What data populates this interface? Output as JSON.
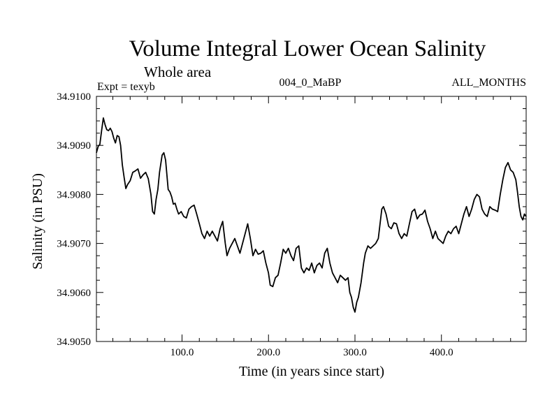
{
  "chart_data": {
    "type": "line",
    "title": "Volume Integral Lower Ocean Salinity",
    "subtitle": "Whole area",
    "annotations": {
      "experiment": "Expt = texyb",
      "run": "004_0_MaBP",
      "months": "ALL_MONTHS"
    },
    "xlabel": "Time (in years since start)",
    "ylabel": "Salinity (in PSU)",
    "xlim": [
      1,
      498
    ],
    "ylim": [
      34.905,
      34.91
    ],
    "x_ticks": [
      100,
      200,
      300,
      400
    ],
    "x_tick_labels": [
      "100.0",
      "200.0",
      "300.0",
      "400.0"
    ],
    "y_ticks": [
      34.905,
      34.906,
      34.907,
      34.908,
      34.909,
      34.91
    ],
    "y_tick_labels": [
      "34.9050",
      "34.9060",
      "34.9070",
      "34.9080",
      "34.9090",
      "34.9100"
    ],
    "grid": false,
    "series": [
      {
        "color": "#000000",
        "points": [
          [
            1,
            34.90885
          ],
          [
            3,
            34.90898
          ],
          [
            5,
            34.90902
          ],
          [
            7,
            34.9093
          ],
          [
            9,
            34.90956
          ],
          [
            11,
            34.90942
          ],
          [
            13,
            34.90932
          ],
          [
            15,
            34.9093
          ],
          [
            17,
            34.90935
          ],
          [
            19,
            34.90928
          ],
          [
            21,
            34.90915
          ],
          [
            23,
            34.90905
          ],
          [
            25,
            34.9092
          ],
          [
            27,
            34.90918
          ],
          [
            29,
            34.909
          ],
          [
            31,
            34.9086
          ],
          [
            33,
            34.90835
          ],
          [
            35,
            34.90812
          ],
          [
            37,
            34.9082
          ],
          [
            40,
            34.90828
          ],
          [
            43,
            34.90845
          ],
          [
            46,
            34.90848
          ],
          [
            49,
            34.90852
          ],
          [
            52,
            34.90833
          ],
          [
            55,
            34.9084
          ],
          [
            58,
            34.90845
          ],
          [
            61,
            34.90832
          ],
          [
            64,
            34.908
          ],
          [
            66,
            34.90765
          ],
          [
            68,
            34.9076
          ],
          [
            70,
            34.9079
          ],
          [
            72,
            34.9081
          ],
          [
            74,
            34.90845
          ],
          [
            77,
            34.9088
          ],
          [
            79,
            34.90885
          ],
          [
            81,
            34.9087
          ],
          [
            84,
            34.9081
          ],
          [
            86,
            34.90805
          ],
          [
            88,
            34.90795
          ],
          [
            90,
            34.9078
          ],
          [
            92,
            34.90782
          ],
          [
            94,
            34.9077
          ],
          [
            96,
            34.9076
          ],
          [
            99,
            34.90765
          ],
          [
            102,
            34.90755
          ],
          [
            105,
            34.90752
          ],
          [
            108,
            34.9077
          ],
          [
            111,
            34.90775
          ],
          [
            114,
            34.90778
          ],
          [
            117,
            34.9076
          ],
          [
            120,
            34.9074
          ],
          [
            123,
            34.9072
          ],
          [
            126,
            34.9071
          ],
          [
            129,
            34.90725
          ],
          [
            132,
            34.90715
          ],
          [
            135,
            34.90725
          ],
          [
            138,
            34.90715
          ],
          [
            141,
            34.90705
          ],
          [
            144,
            34.9073
          ],
          [
            147,
            34.90745
          ],
          [
            150,
            34.907
          ],
          [
            152,
            34.90675
          ],
          [
            155,
            34.9069
          ],
          [
            158,
            34.907
          ],
          [
            161,
            34.9071
          ],
          [
            164,
            34.90695
          ],
          [
            167,
            34.9068
          ],
          [
            170,
            34.907
          ],
          [
            173,
            34.9072
          ],
          [
            176,
            34.9074
          ],
          [
            179,
            34.9071
          ],
          [
            182,
            34.90675
          ],
          [
            185,
            34.90688
          ],
          [
            188,
            34.90678
          ],
          [
            191,
            34.9068
          ],
          [
            194,
            34.90685
          ],
          [
            197,
            34.9066
          ],
          [
            200,
            34.9064
          ],
          [
            202,
            34.90615
          ],
          [
            205,
            34.90612
          ],
          [
            208,
            34.9063
          ],
          [
            211,
            34.90635
          ],
          [
            214,
            34.9066
          ],
          [
            217,
            34.90688
          ],
          [
            220,
            34.9068
          ],
          [
            223,
            34.9069
          ],
          [
            226,
            34.90675
          ],
          [
            229,
            34.90665
          ],
          [
            232,
            34.9069
          ],
          [
            235,
            34.90695
          ],
          [
            238,
            34.9065
          ],
          [
            241,
            34.9064
          ],
          [
            244,
            34.9065
          ],
          [
            247,
            34.90645
          ],
          [
            250,
            34.9066
          ],
          [
            253,
            34.9064
          ],
          [
            256,
            34.90655
          ],
          [
            259,
            34.9066
          ],
          [
            262,
            34.9065
          ],
          [
            265,
            34.9068
          ],
          [
            268,
            34.9069
          ],
          [
            271,
            34.9066
          ],
          [
            274,
            34.9064
          ],
          [
            277,
            34.9063
          ],
          [
            280,
            34.9062
          ],
          [
            283,
            34.90635
          ],
          [
            286,
            34.9063
          ],
          [
            289,
            34.90625
          ],
          [
            292,
            34.9063
          ],
          [
            294,
            34.906
          ],
          [
            296,
            34.9059
          ],
          [
            298,
            34.9057
          ],
          [
            300,
            34.9056
          ],
          [
            302,
            34.9058
          ],
          [
            304,
            34.9059
          ],
          [
            307,
            34.9062
          ],
          [
            310,
            34.9066
          ],
          [
            312,
            34.9068
          ],
          [
            315,
            34.90695
          ],
          [
            318,
            34.9069
          ],
          [
            321,
            34.90695
          ],
          [
            324,
            34.907
          ],
          [
            327,
            34.9071
          ],
          [
            329,
            34.9074
          ],
          [
            331,
            34.9077
          ],
          [
            333,
            34.90775
          ],
          [
            336,
            34.9076
          ],
          [
            339,
            34.90735
          ],
          [
            342,
            34.9073
          ],
          [
            345,
            34.90742
          ],
          [
            348,
            34.9074
          ],
          [
            351,
            34.9072
          ],
          [
            354,
            34.9071
          ],
          [
            357,
            34.9072
          ],
          [
            360,
            34.90715
          ],
          [
            363,
            34.9074
          ],
          [
            366,
            34.90765
          ],
          [
            369,
            34.9077
          ],
          [
            372,
            34.9075
          ],
          [
            375,
            34.90758
          ],
          [
            378,
            34.9076
          ],
          [
            381,
            34.90768
          ],
          [
            384,
            34.90745
          ],
          [
            387,
            34.9073
          ],
          [
            390,
            34.9071
          ],
          [
            393,
            34.90725
          ],
          [
            396,
            34.9071
          ],
          [
            399,
            34.90705
          ],
          [
            402,
            34.907
          ],
          [
            405,
            34.90715
          ],
          [
            408,
            34.90725
          ],
          [
            411,
            34.9072
          ],
          [
            414,
            34.9073
          ],
          [
            417,
            34.90735
          ],
          [
            420,
            34.9072
          ],
          [
            423,
            34.9074
          ],
          [
            426,
            34.9076
          ],
          [
            429,
            34.90775
          ],
          [
            432,
            34.90755
          ],
          [
            435,
            34.9077
          ],
          [
            438,
            34.9079
          ],
          [
            441,
            34.908
          ],
          [
            444,
            34.90795
          ],
          [
            447,
            34.9077
          ],
          [
            450,
            34.9076
          ],
          [
            453,
            34.90755
          ],
          [
            456,
            34.90775
          ],
          [
            459,
            34.9077
          ],
          [
            462,
            34.90768
          ],
          [
            465,
            34.90765
          ],
          [
            468,
            34.908
          ],
          [
            471,
            34.9083
          ],
          [
            474,
            34.90855
          ],
          [
            477,
            34.90865
          ],
          [
            480,
            34.9085
          ],
          [
            483,
            34.90845
          ],
          [
            486,
            34.9083
          ],
          [
            488,
            34.90805
          ],
          [
            490,
            34.90775
          ],
          [
            492,
            34.90755
          ],
          [
            494,
            34.90748
          ],
          [
            496,
            34.9076
          ],
          [
            498,
            34.90755
          ]
        ]
      }
    ]
  }
}
